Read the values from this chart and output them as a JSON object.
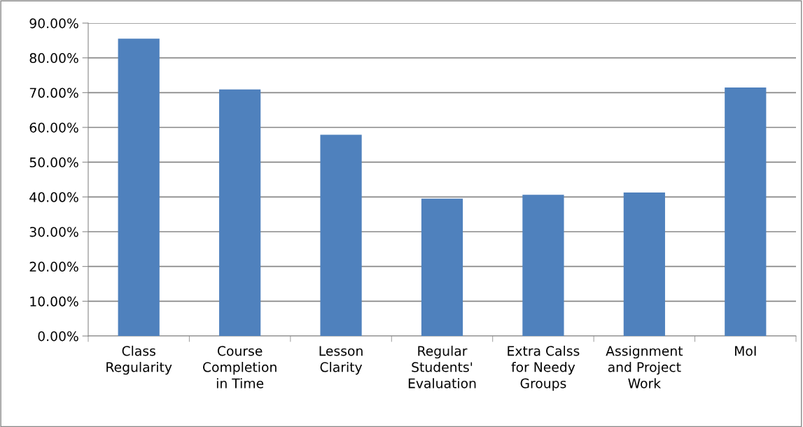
{
  "chart_data": {
    "type": "bar",
    "categories": [
      "Class\nRegularity",
      "Course\nCompletion\nin Time",
      "Lesson\nClarity",
      "Regular\nStudents'\nEvaluation",
      "Extra Calss\nfor Needy\nGroups",
      "Assignment\nand Project\nWork",
      "MoI"
    ],
    "values": [
      85.5,
      70.9,
      57.9,
      39.5,
      40.6,
      41.3,
      71.5
    ],
    "color": "#4f81bd",
    "ylim": [
      0,
      90
    ],
    "yticks": [
      {
        "value": 0,
        "label": "0.00%"
      },
      {
        "value": 10,
        "label": "10.00%"
      },
      {
        "value": 20,
        "label": "20.00%"
      },
      {
        "value": 30,
        "label": "30.00%"
      },
      {
        "value": 40,
        "label": "40.00%"
      },
      {
        "value": 50,
        "label": "50.00%"
      },
      {
        "value": 60,
        "label": "60.00%"
      },
      {
        "value": 70,
        "label": "70.00%"
      },
      {
        "value": 80,
        "label": "80.00%"
      },
      {
        "value": 90,
        "label": "90.00%"
      }
    ],
    "grid": "y"
  }
}
